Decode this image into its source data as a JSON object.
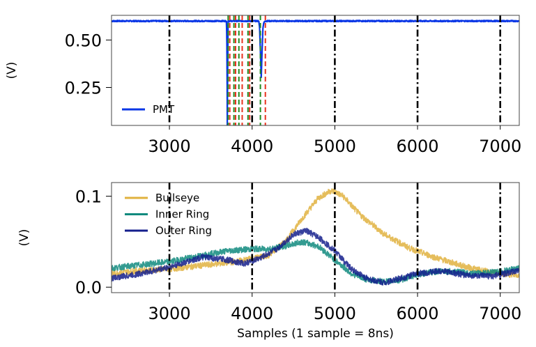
{
  "chart_data": [
    {
      "type": "line",
      "title": "",
      "xlabel": "",
      "ylabel": "(V)",
      "xlim": [
        2300,
        7230
      ],
      "ylim": [
        0.05,
        0.63
      ],
      "xticks": [
        3000,
        4000,
        5000,
        6000,
        7000
      ],
      "xtick_labels": [
        "3000",
        "4000",
        "5000",
        "6000",
        "7000"
      ],
      "yticks": [
        0.25,
        0.5
      ],
      "ytick_labels": [
        "0.25",
        "0.50"
      ],
      "legend_location": "lower-left",
      "series": [
        {
          "name": "PMT",
          "color": "#0b37e6",
          "x": [
            2300,
            3690,
            3696,
            3700,
            3706,
            3710,
            4080,
            4090,
            4100,
            4110,
            4120,
            4130,
            4140,
            4160,
            4200,
            7230
          ],
          "y": [
            0.6,
            0.6,
            0.45,
            0.05,
            0.45,
            0.6,
            0.6,
            0.57,
            0.44,
            0.3,
            0.44,
            0.56,
            0.59,
            0.6,
            0.6,
            0.6
          ]
        }
      ],
      "vlines": [
        {
          "style": "dashdot",
          "color": "#000000",
          "x": [
            3000,
            4000,
            5000,
            6000,
            7000
          ]
        },
        {
          "style": "dashed",
          "color": "#1f8a1f",
          "x": [
            3710,
            3780,
            3840,
            3950,
            4100
          ]
        },
        {
          "style": "dashed",
          "color": "#e8321e",
          "x": [
            3730,
            3800,
            3880,
            3970,
            4160
          ]
        }
      ]
    },
    {
      "type": "line",
      "title": "",
      "xlabel": "Samples (1 sample = 8ns)",
      "ylabel": "(V)",
      "xlim": [
        2300,
        7230
      ],
      "ylim": [
        -0.006,
        0.115
      ],
      "xticks": [
        3000,
        4000,
        5000,
        6000,
        7000
      ],
      "xtick_labels": [
        "3000",
        "4000",
        "5000",
        "6000",
        "7000"
      ],
      "yticks": [
        0.0,
        0.1
      ],
      "ytick_labels": [
        "0.0",
        "0.1"
      ],
      "legend_location": "upper-left",
      "series": [
        {
          "name": "Bullseye",
          "color": "#e0b23e",
          "x": [
            2300,
            2600,
            3000,
            3400,
            3800,
            4200,
            4400,
            4600,
            4800,
            4950,
            5000,
            5100,
            5300,
            5600,
            5900,
            6200,
            6600,
            6900,
            7230
          ],
          "y": [
            0.015,
            0.018,
            0.02,
            0.024,
            0.028,
            0.035,
            0.05,
            0.075,
            0.098,
            0.106,
            0.105,
            0.1,
            0.08,
            0.058,
            0.043,
            0.033,
            0.022,
            0.016,
            0.013
          ]
        },
        {
          "name": "Inner Ring",
          "color": "#0f8a7e",
          "x": [
            2300,
            2700,
            3000,
            3400,
            3700,
            4000,
            4200,
            4400,
            4600,
            4800,
            5000,
            5200,
            5400,
            5600,
            5800,
            6000,
            6300,
            6700,
            7000,
            7230
          ],
          "y": [
            0.021,
            0.025,
            0.028,
            0.035,
            0.04,
            0.042,
            0.042,
            0.045,
            0.05,
            0.045,
            0.03,
            0.015,
            0.008,
            0.006,
            0.008,
            0.014,
            0.018,
            0.015,
            0.017,
            0.021
          ]
        },
        {
          "name": "Outer Ring",
          "color": "#141e8c",
          "x": [
            2300,
            2600,
            3000,
            3400,
            3700,
            3900,
            4100,
            4300,
            4500,
            4650,
            4800,
            5000,
            5200,
            5400,
            5600,
            5800,
            6000,
            6300,
            6600,
            6900,
            7230
          ],
          "y": [
            0.01,
            0.014,
            0.022,
            0.033,
            0.03,
            0.026,
            0.032,
            0.042,
            0.058,
            0.062,
            0.055,
            0.04,
            0.02,
            0.009,
            0.005,
            0.01,
            0.015,
            0.018,
            0.013,
            0.012,
            0.018
          ]
        }
      ],
      "vlines": [
        {
          "style": "dashdot",
          "color": "#000000",
          "x": [
            3000,
            4000,
            5000,
            6000,
            7000
          ]
        }
      ]
    }
  ]
}
